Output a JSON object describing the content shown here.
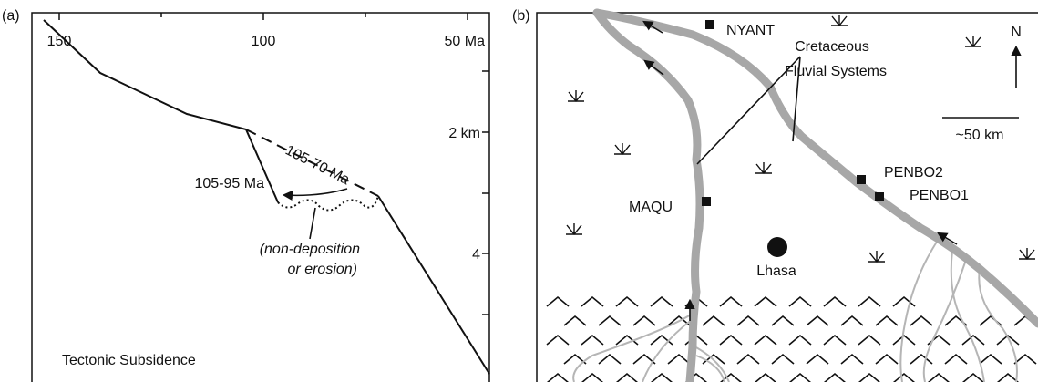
{
  "panel_a": {
    "label": "(a)",
    "x_ticks": [
      "150",
      "100",
      "50 Ma"
    ],
    "y_ticks": [
      "2 km",
      "4"
    ],
    "annotations": {
      "dashed": "105-70 Ma",
      "solid": "105-95 Ma",
      "note_1": "(non-deposition",
      "note_2": "or erosion)"
    },
    "caption": "Tectonic Subsidence"
  },
  "panel_b": {
    "label": "(b)",
    "sites": [
      "NYANT",
      "PENBO2",
      "PENBO1",
      "MAQU"
    ],
    "city": "Lhasa",
    "rivers_1": "Cretaceous",
    "rivers_2": "Fluvial Systems",
    "north": "N",
    "scale": "~50 km"
  }
}
